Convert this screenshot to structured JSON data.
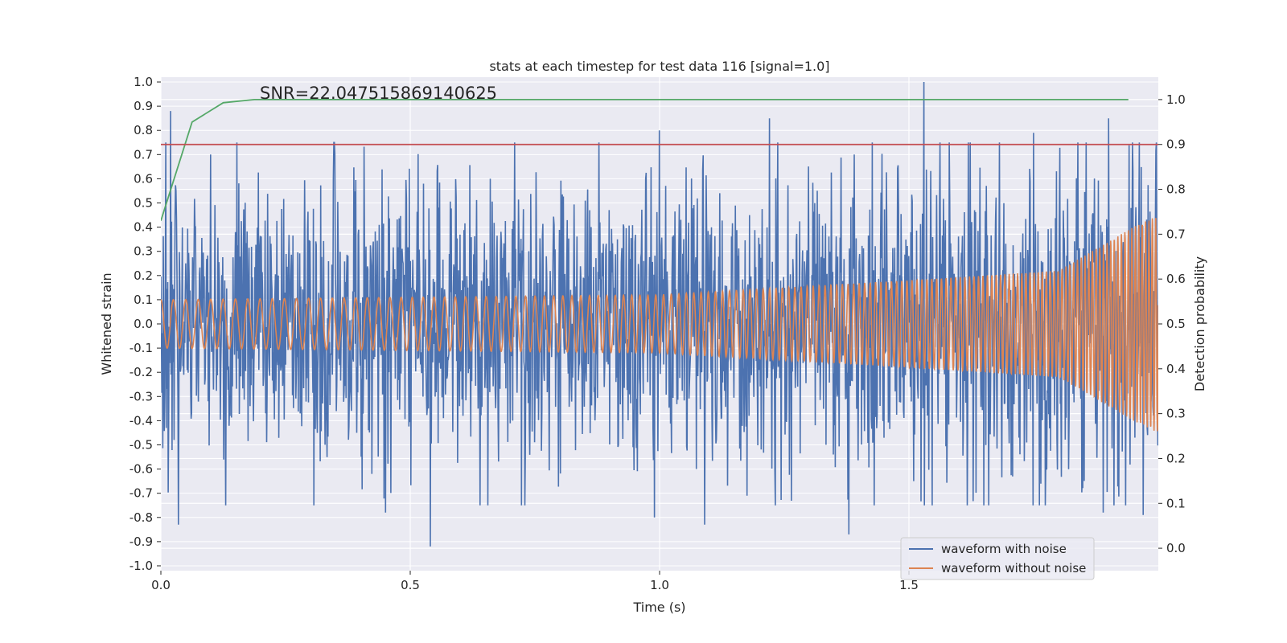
{
  "chart_data": {
    "type": "line",
    "title": "stats at each timestep for test data 116 [signal=1.0]",
    "annotation": "SNR=22.047515869140625",
    "xlabel": "Time (s)",
    "ylabel": "Whitened strain",
    "y2label": "Detection probability",
    "xlim": [
      0.0,
      2.0
    ],
    "ylim": [
      -1.02,
      1.02
    ],
    "y2lim": [
      -0.05,
      1.05
    ],
    "x_ticks": [
      0.0,
      0.5,
      1.0,
      1.5
    ],
    "x_tick_labels": [
      "0.0",
      "0.5",
      "1.0",
      "1.5"
    ],
    "y_ticks": [
      1.0,
      0.9,
      0.8,
      0.7,
      0.6,
      0.5,
      0.4,
      0.3,
      0.2,
      0.1,
      0.0,
      -0.1,
      -0.2,
      -0.3,
      -0.4,
      -0.5,
      -0.6,
      -0.7,
      -0.8,
      -0.9,
      -1.0
    ],
    "y_tick_labels": [
      "1.0",
      "0.9",
      "0.8",
      "0.7",
      "0.6",
      "0.5",
      "0.4",
      "0.3",
      "0.2",
      "0.1",
      "0.0",
      "-0.1",
      "-0.2",
      "-0.3",
      "-0.4",
      "-0.5",
      "-0.6",
      "-0.7",
      "-0.8",
      "-0.9",
      "-1.0"
    ],
    "y2_ticks": [
      1.0,
      0.9,
      0.8,
      0.7,
      0.6,
      0.5,
      0.4,
      0.3,
      0.2,
      0.1,
      0.0
    ],
    "y2_tick_labels": [
      "1.0",
      "0.9",
      "0.8",
      "0.7",
      "0.6",
      "0.5",
      "0.4",
      "0.3",
      "0.2",
      "0.1",
      "0.0"
    ],
    "grid": true,
    "legend_position": "lower-right",
    "series": [
      {
        "name": "waveform with noise",
        "axis": "left",
        "color": "#4c72b0",
        "kind": "noisy-oscillation",
        "x_start": 0.0,
        "x_end": 2.0,
        "samples": 2048,
        "amplitude_envelope": [
          [
            0.0,
            0.35
          ],
          [
            1.0,
            0.35
          ],
          [
            2.0,
            0.45
          ]
        ],
        "peaks": [
          {
            "x": 0.02,
            "y": 0.88
          },
          {
            "x": 0.035,
            "y": -0.83
          },
          {
            "x": 0.1,
            "y": 0.7
          },
          {
            "x": 0.45,
            "y": -0.78
          },
          {
            "x": 0.54,
            "y": -0.92
          },
          {
            "x": 0.66,
            "y": 0.6
          },
          {
            "x": 1.0,
            "y": 0.8
          },
          {
            "x": 0.99,
            "y": -0.8
          },
          {
            "x": 1.09,
            "y": -0.83
          },
          {
            "x": 1.22,
            "y": 0.85
          },
          {
            "x": 1.38,
            "y": -0.87
          },
          {
            "x": 1.53,
            "y": 1.0
          },
          {
            "x": 1.75,
            "y": 0.79
          },
          {
            "x": 1.9,
            "y": 0.85
          },
          {
            "x": 1.89,
            "y": -0.78
          },
          {
            "x": 1.97,
            "y": -0.79
          }
        ]
      },
      {
        "name": "waveform without noise",
        "axis": "left",
        "color": "#dd8452",
        "kind": "chirp",
        "x_start": 0.0,
        "x_end": 2.0,
        "samples": 4000,
        "frequency_start_hz": 40,
        "frequency_end_hz": 150,
        "amplitude_envelope": [
          [
            0.0,
            0.1
          ],
          [
            1.0,
            0.12
          ],
          [
            1.5,
            0.18
          ],
          [
            1.8,
            0.22
          ],
          [
            1.95,
            0.4
          ],
          [
            2.0,
            0.45
          ]
        ]
      },
      {
        "name": "",
        "axis": "right",
        "color": "#55a868",
        "kind": "line",
        "x": [
          0.0,
          0.0625,
          0.125,
          0.1875,
          0.25,
          0.5,
          1.0,
          1.5,
          1.94
        ],
        "y": [
          0.73,
          0.95,
          0.993,
          1.0,
          1.0,
          1.0,
          1.0,
          1.0,
          1.0
        ]
      },
      {
        "name": "",
        "axis": "right",
        "color": "#c44e52",
        "kind": "hline",
        "y": 0.9
      }
    ]
  }
}
